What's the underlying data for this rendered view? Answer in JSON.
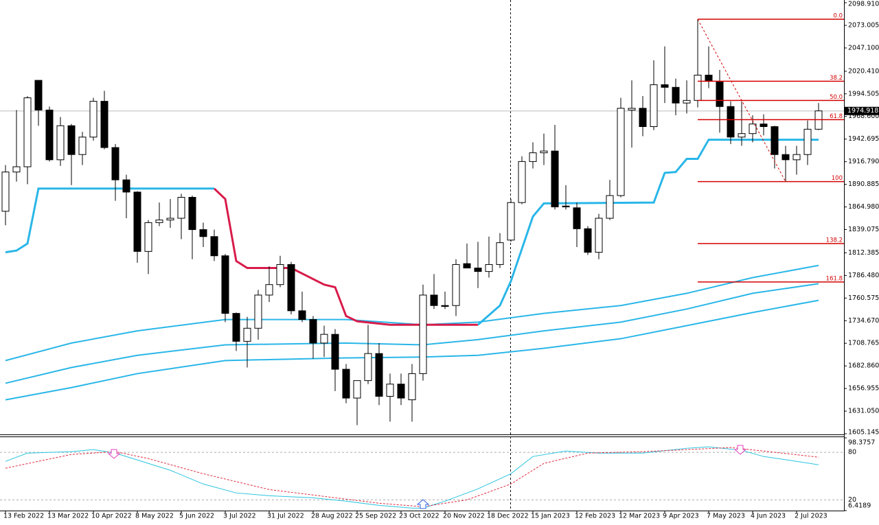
{
  "chart_data": [
    {
      "type": "candlestick",
      "categories": [
        "13 Feb 2022",
        null,
        null,
        null,
        "13 Mar 2022",
        null,
        null,
        null,
        "10 Apr 2022",
        null,
        null,
        null,
        "8 May 2022",
        null,
        null,
        null,
        "5 Jun 2022",
        null,
        null,
        null,
        "3 Jul 2022",
        null,
        null,
        null,
        "31 Jul 2022",
        null,
        null,
        null,
        "28 Aug 2022",
        null,
        null,
        null,
        "25 Sep 2022",
        null,
        null,
        null,
        "23 Oct 2022",
        null,
        null,
        null,
        "20 Nov 2022",
        null,
        null,
        null,
        "18 Dec 2022",
        null,
        null,
        null,
        "15 Jan 2023",
        null,
        null,
        null,
        "12 Feb 2023",
        null,
        null,
        null,
        "12 Mar 2023",
        null,
        null,
        null,
        "9 Apr 2023",
        null,
        null,
        null,
        "7 May 2023",
        null,
        null,
        null,
        "4 Jun 2023",
        null,
        null,
        null,
        "2 Jul 2023",
        null,
        null
      ],
      "open": [
        1860,
        1905,
        1911,
        2010,
        1976,
        1919,
        1958,
        1925,
        1945,
        1986,
        1933,
        1896,
        1882,
        1814,
        1847,
        1850,
        1852,
        1876,
        1839,
        1831,
        1809,
        1743,
        1711,
        1726,
        1764,
        1776,
        1799,
        1746,
        1736,
        1709,
        1719,
        1679,
        1646,
        1666,
        1697,
        1648,
        1662,
        1644,
        1674,
        1764,
        1752,
        1752,
        1800,
        1795,
        1791,
        1799,
        1827,
        1870,
        1917,
        1927,
        1929,
        1866,
        1864,
        1840,
        1813,
        1852,
        1878,
        1976,
        1978,
        1957,
        2005,
        2002,
        1984,
        1987,
        2016,
        2009,
        1980,
        1945,
        1949,
        1960,
        1957,
        1925,
        1919,
        1925,
        1954
      ],
      "high": [
        1913,
        1976,
        1992,
        2010,
        1980,
        1968,
        1960,
        1951,
        1990,
        1998,
        1937,
        1902,
        1883,
        1850,
        1870,
        1874,
        1880,
        1878,
        1847,
        1839,
        1811,
        1744,
        1739,
        1770,
        1797,
        1809,
        1802,
        1768,
        1740,
        1729,
        1725,
        1685,
        1666,
        1730,
        1709,
        1674,
        1674,
        1685,
        1776,
        1788,
        1768,
        1805,
        1823,
        1825,
        1831,
        1835,
        1874,
        1923,
        1939,
        1949,
        1959,
        1890,
        1870,
        1843,
        1857,
        1896,
        1990,
        2010,
        1992,
        2033,
        2049,
        2012,
        2010,
        2080,
        2049,
        2022,
        1986,
        1986,
        1970,
        1971,
        1958,
        1935,
        1935,
        1964,
        1984
      ],
      "low": [
        1844,
        1894,
        1891,
        1958,
        1917,
        1912,
        1890,
        1913,
        1941,
        1931,
        1872,
        1852,
        1801,
        1788,
        1843,
        1841,
        1828,
        1805,
        1819,
        1803,
        1733,
        1700,
        1681,
        1713,
        1756,
        1773,
        1742,
        1733,
        1691,
        1693,
        1654,
        1640,
        1615,
        1662,
        1638,
        1619,
        1638,
        1619,
        1666,
        1748,
        1748,
        1740,
        1795,
        1772,
        1784,
        1795,
        1825,
        1868,
        1909,
        1913,
        1862,
        1862,
        1819,
        1810,
        1805,
        1850,
        1876,
        1933,
        1946,
        1953,
        1984,
        1970,
        1972,
        1979,
        2001,
        1950,
        1937,
        1935,
        1939,
        1947,
        1909,
        1894,
        1902,
        1913,
        1953
      ],
      "close": [
        1905,
        1911,
        1990,
        1976,
        1919,
        1958,
        1925,
        1945,
        1986,
        1933,
        1896,
        1882,
        1814,
        1847,
        1850,
        1852,
        1876,
        1839,
        1831,
        1809,
        1743,
        1711,
        1726,
        1764,
        1776,
        1799,
        1746,
        1736,
        1709,
        1719,
        1679,
        1646,
        1666,
        1697,
        1648,
        1662,
        1646,
        1674,
        1764,
        1752,
        1751,
        1799,
        1795,
        1791,
        1799,
        1824,
        1870,
        1917,
        1927,
        1929,
        1865,
        1865,
        1840,
        1813,
        1852,
        1878,
        1978,
        1978,
        1957,
        2005,
        2002,
        1984,
        1987,
        2016,
        2009,
        1980,
        1945,
        1949,
        1960,
        1957,
        1925,
        1919,
        1925,
        1954,
        1975
      ],
      "up_color": "#ffffff",
      "down_color": "#000000",
      "lines": [
        {
          "color": "#29b6e8",
          "width": 2,
          "x": [
            0,
            6,
            12,
            20,
            31,
            38,
            43,
            49,
            56,
            62,
            68,
            74
          ],
          "values": [
            1689,
            1709,
            1723,
            1736,
            1736,
            1730,
            1733,
            1743,
            1752,
            1766,
            1784,
            1798
          ]
        },
        {
          "color": "#29b6e8",
          "width": 2,
          "x": [
            0,
            6,
            12,
            20,
            31,
            38,
            43,
            49,
            56,
            62,
            68,
            74
          ],
          "values": [
            1663,
            1681,
            1695,
            1707,
            1709,
            1707,
            1713,
            1723,
            1733,
            1748,
            1766,
            1777
          ]
        },
        {
          "color": "#29b6e8",
          "width": 2,
          "x": [
            0,
            6,
            12,
            20,
            31,
            38,
            43,
            49,
            56,
            62,
            68,
            74
          ],
          "values": [
            1644,
            1658,
            1674,
            1689,
            1692,
            1693,
            1695,
            1703,
            1714,
            1729,
            1744,
            1758
          ]
        },
        {
          "color": "#29b6e8",
          "width": 3,
          "x": [
            0,
            1,
            2,
            3,
            19
          ],
          "values": [
            1813,
            1815,
            1823,
            1886,
            1886
          ]
        },
        {
          "color": "#d81b4a",
          "width": 3,
          "x": [
            19,
            20,
            21,
            22,
            26,
            29,
            30,
            31,
            32,
            35,
            43
          ],
          "values": [
            1886,
            1874,
            1803,
            1795,
            1795,
            1776,
            1773,
            1740,
            1734,
            1730,
            1730
          ]
        },
        {
          "color": "#29b6e8",
          "width": 3,
          "x": [
            43,
            45,
            46,
            48,
            49,
            59,
            60,
            61,
            62,
            63,
            64,
            74
          ],
          "values": [
            1730,
            1752,
            1780,
            1854,
            1869,
            1870,
            1904,
            1905,
            1920,
            1920,
            1942,
            1942
          ]
        }
      ],
      "fibonacci": {
        "color": "#d40000",
        "start": 63,
        "levels": [
          2080,
          2009,
          1987,
          1965,
          1894,
          1823,
          1779
        ],
        "level_labels": [
          "0.0",
          "38.2",
          "50.0",
          "61.8",
          "100",
          "138.2",
          "161.8"
        ],
        "line_x": [
          63,
          71
        ],
        "line_y": [
          2080,
          1894
        ]
      },
      "last_price": 1974.918,
      "ylim": [
        1605.145,
        2098.91
      ],
      "yticks": [
        {
          "value": 2098.91,
          "label": "2098.910"
        },
        2073.005,
        {
          "value": 2047.1,
          "label": "2047.100"
        },
        {
          "value": 2020.41,
          "label": "2020.410"
        },
        1994.505,
        {
          "value": 1968.6,
          "label": "1968.600"
        },
        1942.695,
        {
          "value": 1916.79,
          "label": "1916.790"
        },
        1890.885,
        {
          "value": 1864.98,
          "label": "1864.980"
        },
        1839.075,
        1812.385,
        {
          "value": 1786.48,
          "label": "1786.480"
        },
        1760.575,
        {
          "value": 1734.67,
          "label": "1734.670"
        },
        1708.765,
        {
          "value": 1682.86,
          "label": "1682.860"
        },
        1656.955,
        {
          "value": 1631.05,
          "label": "1631.050"
        },
        1605.145
      ]
    },
    {
      "type": "line",
      "series": [
        {
          "color": "#29c4e0",
          "dash": false,
          "x": [
            0,
            2,
            6,
            8,
            10,
            12,
            15,
            18,
            21,
            24,
            28,
            31,
            34,
            37,
            38,
            40,
            43,
            46,
            48,
            51,
            54,
            58,
            62,
            64,
            67,
            69,
            72,
            74
          ],
          "values": [
            68.7,
            79.1,
            80.9,
            83.5,
            79.1,
            70.4,
            57.4,
            40,
            28.7,
            25.2,
            22.6,
            18.3,
            13,
            9.6,
            9.6,
            18.3,
            33.9,
            53,
            74.8,
            81.7,
            79.1,
            79.1,
            85.2,
            87,
            82.6,
            74.8,
            68.7,
            64.3
          ]
        },
        {
          "color": "#e0283c",
          "dash": true,
          "x": [
            0,
            3,
            6,
            10,
            13,
            18,
            24,
            31,
            34,
            38,
            42,
            46,
            49,
            53,
            58,
            62,
            66,
            69,
            74
          ],
          "values": [
            60,
            68.7,
            77.4,
            80.9,
            72.2,
            53,
            33,
            20.9,
            15.7,
            11.3,
            20,
            40,
            66.1,
            79.1,
            80.9,
            83.5,
            86.1,
            81.7,
            73.9
          ]
        }
      ],
      "ylim": [
        6.4189,
        98.3757
      ],
      "yticks": [
        98.3757,
        80,
        20,
        6.4189
      ]
    }
  ]
}
